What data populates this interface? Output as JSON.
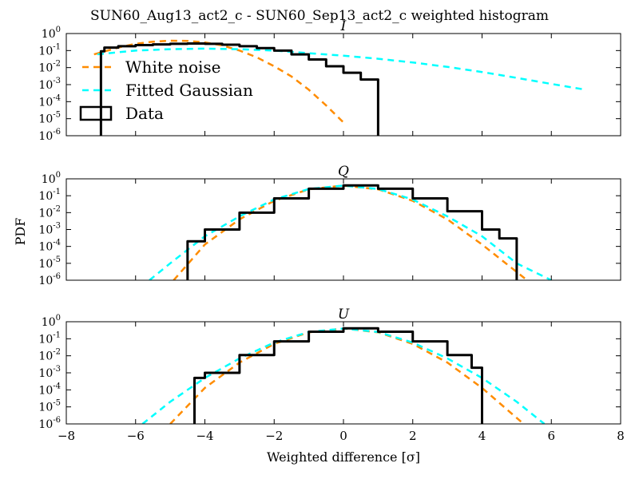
{
  "figure": {
    "suptitle": "SUN60_Aug13_act2_c - SUN60_Sep13_act2_c weighted histogram",
    "shared_xlabel": "Weighted difference [σ]",
    "shared_ylabel": "PDF"
  },
  "chart_data": [
    {
      "type": "line",
      "title": "I",
      "yscale": "log",
      "xlim": [
        -8,
        8
      ],
      "ylim": [
        1e-06,
        1
      ],
      "xticks": [
        "−8",
        "−6",
        "−4",
        "−2",
        "0",
        "2",
        "4",
        "6",
        "8"
      ],
      "show_x_ticklabels": false,
      "yticks": [
        {
          "base": "10",
          "exp": "0"
        },
        {
          "base": "10",
          "exp": "-1"
        },
        {
          "base": "10",
          "exp": "-2"
        },
        {
          "base": "10",
          "exp": "-3"
        },
        {
          "base": "10",
          "exp": "-4"
        },
        {
          "base": "10",
          "exp": "-5"
        },
        {
          "base": "10",
          "exp": "-6"
        }
      ],
      "legend": {
        "position": "upper-left",
        "entries": [
          {
            "label": "White noise",
            "style": "dashed",
            "color": "#ff8c00"
          },
          {
            "label": "Fitted Gaussian",
            "style": "dashed",
            "color": "#00ffff"
          },
          {
            "label": "Data",
            "style": "box",
            "color": "#000000"
          }
        ]
      },
      "series": [
        {
          "name": "White noise",
          "color": "#ff8c00",
          "style": "dashed",
          "x": [
            -7.2,
            -6.5,
            -6,
            -5.5,
            -5,
            -4.5,
            -4,
            -3.5,
            -3,
            -2.5,
            -2,
            -1.5,
            -1,
            -0.5,
            0
          ],
          "y": [
            0.06,
            0.15,
            0.25,
            0.33,
            0.38,
            0.37,
            0.3,
            0.2,
            0.1,
            0.04,
            0.012,
            0.003,
            0.0005,
            6e-05,
            6e-06
          ]
        },
        {
          "name": "Fitted Gaussian",
          "color": "#00ffff",
          "style": "dashed",
          "x": [
            -7.1,
            -6,
            -5,
            -4,
            -3,
            -2,
            -1,
            0,
            1,
            2,
            3,
            4,
            5,
            6,
            7
          ],
          "y": [
            0.06,
            0.1,
            0.12,
            0.13,
            0.12,
            0.1,
            0.07,
            0.05,
            0.033,
            0.02,
            0.011,
            0.0055,
            0.0025,
            0.0011,
            0.0005
          ]
        },
        {
          "name": "Data",
          "color": "#000000",
          "style": "steps",
          "x": [
            -7,
            -6.9,
            -6.5,
            -6,
            -5.5,
            -5,
            -4.5,
            -4,
            -3.5,
            -3,
            -2.5,
            -2,
            -1.5,
            -1,
            -0.5,
            0,
            0.5,
            1
          ],
          "y": [
            0.09,
            0.15,
            0.18,
            0.21,
            0.23,
            0.25,
            0.26,
            0.25,
            0.22,
            0.18,
            0.14,
            0.1,
            0.06,
            0.03,
            0.012,
            0.005,
            0.002,
            0.0008
          ]
        }
      ]
    },
    {
      "type": "line",
      "title": "Q",
      "yscale": "log",
      "xlim": [
        -8,
        8
      ],
      "ylim": [
        1e-06,
        1
      ],
      "xticks": [
        "−8",
        "−6",
        "−4",
        "−2",
        "0",
        "2",
        "4",
        "6",
        "8"
      ],
      "show_x_ticklabels": false,
      "yticks": [
        {
          "base": "10",
          "exp": "0"
        },
        {
          "base": "10",
          "exp": "-1"
        },
        {
          "base": "10",
          "exp": "-2"
        },
        {
          "base": "10",
          "exp": "-3"
        },
        {
          "base": "10",
          "exp": "-4"
        },
        {
          "base": "10",
          "exp": "-5"
        },
        {
          "base": "10",
          "exp": "-6"
        }
      ],
      "series": [
        {
          "name": "White noise",
          "color": "#ff8c00",
          "style": "dashed",
          "x": [
            -4.9,
            -4,
            -3,
            -2,
            -1,
            0,
            1,
            2,
            3,
            4,
            5.3
          ],
          "y": [
            1e-06,
            0.00013,
            0.004,
            0.05,
            0.24,
            0.4,
            0.24,
            0.05,
            0.004,
            0.00013,
            1e-06
          ]
        },
        {
          "name": "Fitted Gaussian",
          "color": "#00ffff",
          "style": "dashed",
          "x": [
            -5.6,
            -5,
            -4,
            -3,
            -2,
            -1,
            0,
            1,
            2,
            3,
            4,
            5,
            6
          ],
          "y": [
            1e-06,
            1e-05,
            0.0004,
            0.006,
            0.06,
            0.25,
            0.4,
            0.25,
            0.06,
            0.006,
            0.0004,
            1e-05,
            1e-06
          ]
        },
        {
          "name": "Data",
          "color": "#000000",
          "style": "steps",
          "x": [
            -4.5,
            -4,
            -3,
            -2,
            -1,
            0,
            1,
            2,
            3,
            4,
            4.5,
            5
          ],
          "y": [
            0.0002,
            0.001,
            0.01,
            0.07,
            0.26,
            0.41,
            0.26,
            0.07,
            0.012,
            0.001,
            0.0003,
            0.0001
          ]
        }
      ]
    },
    {
      "type": "line",
      "title": "U",
      "yscale": "log",
      "xlim": [
        -8,
        8
      ],
      "ylim": [
        1e-06,
        1
      ],
      "xlabel": "Weighted difference [σ]",
      "xticks": [
        "−8",
        "−6",
        "−4",
        "−2",
        "0",
        "2",
        "4",
        "6",
        "8"
      ],
      "show_x_ticklabels": true,
      "yticks": [
        {
          "base": "10",
          "exp": "0"
        },
        {
          "base": "10",
          "exp": "-1"
        },
        {
          "base": "10",
          "exp": "-2"
        },
        {
          "base": "10",
          "exp": "-3"
        },
        {
          "base": "10",
          "exp": "-4"
        },
        {
          "base": "10",
          "exp": "-5"
        },
        {
          "base": "10",
          "exp": "-6"
        }
      ],
      "series": [
        {
          "name": "White noise",
          "color": "#ff8c00",
          "style": "dashed",
          "x": [
            -5,
            -4,
            -3,
            -2,
            -1,
            0,
            1,
            2,
            3,
            4,
            5.2
          ],
          "y": [
            1e-06,
            0.00013,
            0.004,
            0.05,
            0.24,
            0.4,
            0.24,
            0.05,
            0.004,
            0.00013,
            1e-06
          ]
        },
        {
          "name": "Fitted Gaussian",
          "color": "#00ffff",
          "style": "dashed",
          "x": [
            -5.8,
            -5,
            -4,
            -3,
            -2,
            -1,
            0,
            1,
            2,
            3,
            4,
            5,
            5.8
          ],
          "y": [
            1e-06,
            2e-05,
            0.0005,
            0.007,
            0.06,
            0.25,
            0.4,
            0.25,
            0.06,
            0.007,
            0.0005,
            2e-05,
            1e-06
          ]
        },
        {
          "name": "Data",
          "color": "#000000",
          "style": "steps",
          "x": [
            -4.3,
            -4,
            -3,
            -2,
            -1,
            0,
            1,
            2,
            3,
            3.7,
            4
          ],
          "y": [
            0.0005,
            0.001,
            0.011,
            0.07,
            0.26,
            0.41,
            0.26,
            0.07,
            0.011,
            0.002,
            0.0008
          ]
        }
      ]
    }
  ]
}
